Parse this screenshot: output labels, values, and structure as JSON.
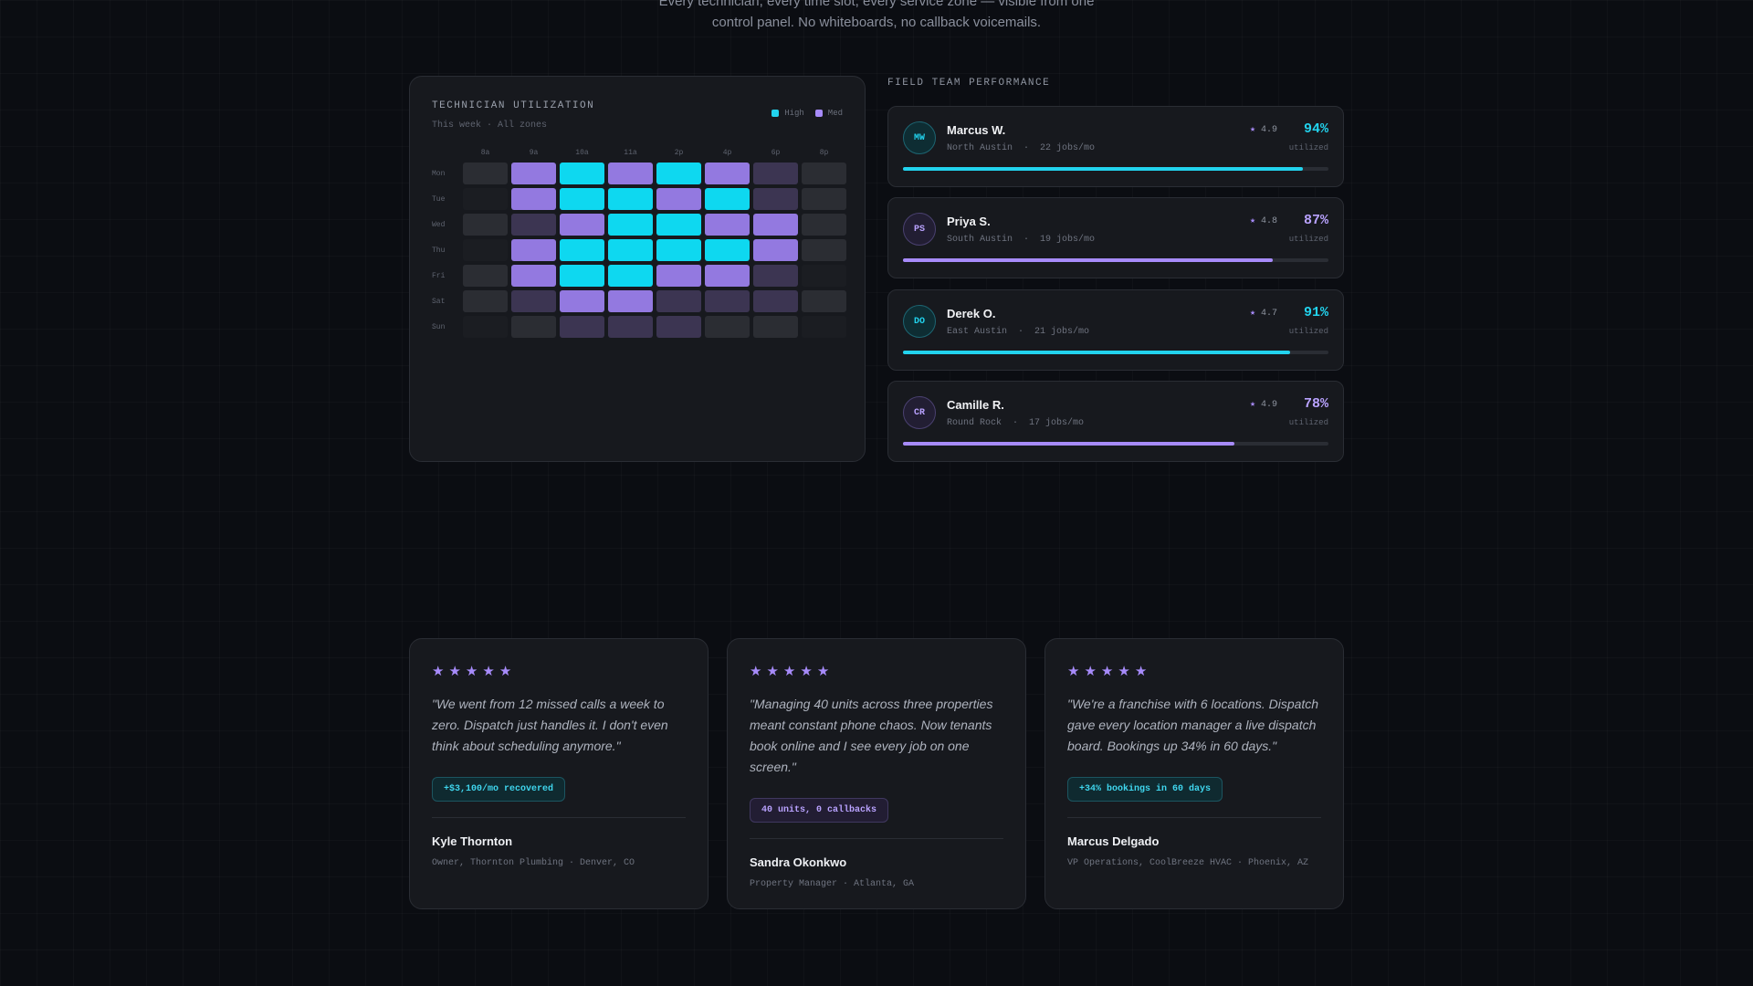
{
  "intro": {
    "line1": "Every technician, every time slot, every service zone — visible from one",
    "line2": "control panel. No whiteboards, no callback voicemails."
  },
  "utilization": {
    "title": "TECHNICIAN UTILIZATION",
    "subtitle": "This week · All zones",
    "legend": [
      {
        "label": "High",
        "color": "#22d3ee"
      },
      {
        "label": "Med",
        "color": "#a78bfa"
      }
    ],
    "columns": [
      "8a",
      "9a",
      "10a",
      "11a",
      "2p",
      "4p",
      "6p",
      "8p"
    ],
    "rows": [
      {
        "day": "Mon",
        "levels": [
          "low",
          "med",
          "high",
          "med",
          "high",
          "med",
          "dim",
          "low"
        ]
      },
      {
        "day": "Tue",
        "levels": [
          "empty",
          "med",
          "high",
          "high",
          "med",
          "high",
          "dim",
          "low"
        ]
      },
      {
        "day": "Wed",
        "levels": [
          "low",
          "dim",
          "med",
          "high",
          "high",
          "med",
          "med",
          "low"
        ]
      },
      {
        "day": "Thu",
        "levels": [
          "empty",
          "med",
          "high",
          "high",
          "high",
          "high",
          "med",
          "low"
        ]
      },
      {
        "day": "Fri",
        "levels": [
          "low",
          "med",
          "high",
          "high",
          "med",
          "med",
          "dim",
          "empty"
        ]
      },
      {
        "day": "Sat",
        "levels": [
          "low",
          "dim",
          "med",
          "med",
          "dim",
          "dim",
          "dim",
          "low"
        ]
      },
      {
        "day": "Sun",
        "levels": [
          "empty",
          "low",
          "dim",
          "dim",
          "dim",
          "low",
          "low",
          "empty"
        ]
      }
    ],
    "level_colors": {
      "high": "#0ed8f0",
      "med": "#9379e0",
      "dim": "#3c3552",
      "low": "#2b2d33",
      "empty": "#1b1d22"
    }
  },
  "team": {
    "title": "FIELD TEAM PERFORMANCE",
    "util_label": "utilized",
    "technicians": [
      {
        "initials": "MW",
        "name": "Marcus W.",
        "zone": "North Austin",
        "jobs": "22 jobs/mo",
        "rating": "4.9",
        "percent": "94%",
        "utilization": 0.94,
        "accent": "#22d3ee"
      },
      {
        "initials": "PS",
        "name": "Priya S.",
        "zone": "South Austin",
        "jobs": "19 jobs/mo",
        "rating": "4.8",
        "percent": "87%",
        "utilization": 0.87,
        "accent": "#a78bfa"
      },
      {
        "initials": "DO",
        "name": "Derek O.",
        "zone": "East Austin",
        "jobs": "21 jobs/mo",
        "rating": "4.7",
        "percent": "91%",
        "utilization": 0.91,
        "accent": "#22d3ee"
      },
      {
        "initials": "CR",
        "name": "Camille R.",
        "zone": "Round Rock",
        "jobs": "17 jobs/mo",
        "rating": "4.9",
        "percent": "78%",
        "utilization": 0.78,
        "accent": "#a78bfa"
      }
    ]
  },
  "testimonials": [
    {
      "stars": 5,
      "quote": "\"We went from 12 missed calls a week to zero. Dispatch just handles it. I don't even think about scheduling anymore.\"",
      "chip": "+$3,100/mo recovered",
      "chip_style": "cyan",
      "author": "Kyle Thornton",
      "role": "Owner, Thornton Plumbing · Denver, CO"
    },
    {
      "stars": 5,
      "quote": "\"Managing 40 units across three properties meant constant phone chaos. Now tenants book online and I see every job on one screen.\"",
      "chip": "40 units, 0 callbacks",
      "chip_style": "violet",
      "author": "Sandra Okonkwo",
      "role": "Property Manager · Atlanta, GA"
    },
    {
      "stars": 5,
      "quote": "\"We're a franchise with 6 locations. Dispatch gave every location manager a live dispatch board. Bookings up 34% in 60 days.\"",
      "chip": "+34% bookings in 60 days",
      "chip_style": "cyan",
      "author": "Marcus Delgado",
      "role": "VP Operations, CoolBreeze HVAC · Phoenix, AZ"
    }
  ]
}
